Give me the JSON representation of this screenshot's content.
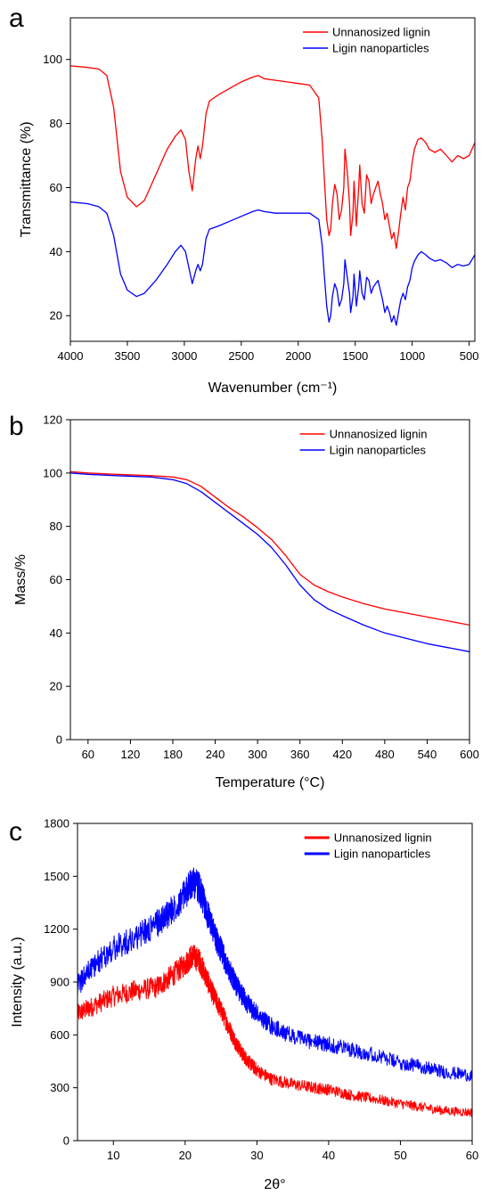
{
  "chart_data": [
    {
      "panel": "a",
      "type": "line",
      "xlabel": "Wavenumber (cm⁻¹)",
      "ylabel": "Transmittance (%)",
      "xlim": [
        4000,
        450
      ],
      "ylim": [
        12,
        113
      ],
      "x_reversed": true,
      "xticks": [
        4000,
        3500,
        3000,
        2500,
        2000,
        1500,
        1000,
        500
      ],
      "yticks": [
        20,
        40,
        60,
        80,
        100
      ],
      "legend_position": "top-right",
      "grid": false,
      "series": [
        {
          "name": "Unnanosized lignin",
          "color": "#ff0000",
          "x": [
            4000,
            3850,
            3750,
            3680,
            3620,
            3560,
            3500,
            3420,
            3350,
            3250,
            3150,
            3080,
            3030,
            2990,
            2960,
            2930,
            2900,
            2880,
            2860,
            2840,
            2810,
            2780,
            2700,
            2600,
            2500,
            2400,
            2350,
            2300,
            2200,
            2100,
            2000,
            1900,
            1820,
            1790,
            1770,
            1750,
            1730,
            1715,
            1700,
            1680,
            1660,
            1640,
            1620,
            1600,
            1590,
            1570,
            1550,
            1540,
            1520,
            1510,
            1490,
            1470,
            1460,
            1440,
            1420,
            1400,
            1380,
            1360,
            1340,
            1320,
            1300,
            1280,
            1260,
            1240,
            1220,
            1200,
            1180,
            1160,
            1140,
            1120,
            1100,
            1080,
            1060,
            1040,
            1020,
            1000,
            980,
            950,
            920,
            880,
            850,
            800,
            750,
            700,
            650,
            600,
            550,
            500,
            450
          ],
          "y": [
            98,
            97.5,
            97,
            95,
            85,
            65,
            57,
            54,
            56,
            64,
            72,
            76,
            78,
            75,
            65,
            59,
            69,
            73,
            69,
            73,
            83,
            87,
            89,
            91,
            93,
            94.5,
            95,
            94,
            93.5,
            93,
            92.5,
            92,
            88,
            75,
            62,
            50,
            45,
            47,
            55,
            61,
            58,
            50,
            53,
            60,
            72,
            65,
            55,
            45,
            52,
            62,
            48,
            60,
            67,
            55,
            52,
            64,
            62,
            55,
            58,
            60,
            62,
            58,
            55,
            50,
            52,
            48,
            44,
            46,
            41,
            46,
            52,
            57,
            53,
            60,
            62,
            68,
            72,
            75,
            75.5,
            74,
            72,
            71,
            72,
            70,
            68,
            70,
            69,
            70,
            74
          ]
        },
        {
          "name": "Ligin nanoparticles",
          "color": "#0000ff",
          "x": [
            4000,
            3850,
            3750,
            3680,
            3620,
            3560,
            3500,
            3420,
            3350,
            3250,
            3150,
            3080,
            3030,
            2990,
            2960,
            2930,
            2900,
            2880,
            2860,
            2840,
            2810,
            2780,
            2700,
            2600,
            2500,
            2400,
            2350,
            2300,
            2200,
            2100,
            2000,
            1900,
            1820,
            1790,
            1770,
            1750,
            1730,
            1715,
            1700,
            1680,
            1660,
            1640,
            1620,
            1600,
            1590,
            1570,
            1550,
            1540,
            1520,
            1510,
            1490,
            1470,
            1460,
            1440,
            1420,
            1400,
            1380,
            1360,
            1340,
            1320,
            1300,
            1280,
            1260,
            1240,
            1220,
            1200,
            1180,
            1160,
            1140,
            1120,
            1100,
            1080,
            1060,
            1040,
            1020,
            1000,
            980,
            950,
            920,
            880,
            850,
            800,
            750,
            700,
            650,
            600,
            550,
            500,
            450
          ],
          "y": [
            55.5,
            55,
            54,
            52,
            45,
            33,
            28,
            26,
            27,
            31,
            36,
            40,
            42,
            40,
            35,
            30,
            34,
            36,
            34,
            36,
            44,
            47,
            48,
            49.5,
            51,
            52.5,
            53,
            52.5,
            52,
            52,
            52,
            52,
            50,
            42,
            32,
            23,
            18,
            20,
            26,
            30,
            28,
            23,
            25,
            30,
            37.5,
            32,
            27,
            21,
            26,
            33,
            23,
            29,
            34,
            27,
            25,
            32,
            31,
            27,
            29,
            30,
            31,
            28,
            25,
            21,
            23,
            21,
            18,
            20,
            17,
            21,
            25,
            27,
            25,
            29,
            31,
            35,
            37,
            39,
            40,
            39,
            38,
            37,
            37.5,
            36.5,
            35,
            36,
            35.5,
            36,
            39
          ]
        }
      ]
    },
    {
      "panel": "b",
      "type": "line",
      "xlabel": "Temperature (°C)",
      "ylabel": "Mass/%",
      "xlim": [
        35,
        600
      ],
      "ylim": [
        0,
        120
      ],
      "xticks": [
        60,
        120,
        180,
        240,
        300,
        360,
        420,
        480,
        540,
        600
      ],
      "yticks": [
        0,
        20,
        40,
        60,
        80,
        100,
        120
      ],
      "legend_position": "top-right",
      "grid": false,
      "series": [
        {
          "name": "Unnanosized lignin",
          "color": "#ff0000",
          "x": [
            35,
            60,
            100,
            150,
            180,
            200,
            220,
            240,
            260,
            280,
            300,
            320,
            340,
            360,
            380,
            400,
            420,
            450,
            480,
            510,
            540,
            570,
            600
          ],
          "y": [
            100.5,
            100,
            99.5,
            99,
            98.5,
            97.5,
            95,
            91,
            87,
            83.5,
            79.5,
            75,
            69,
            62,
            58,
            55.5,
            53.5,
            51,
            49,
            47.5,
            46,
            44.5,
            43
          ]
        },
        {
          "name": "Ligin nanoparticles",
          "color": "#0000ff",
          "x": [
            35,
            60,
            100,
            150,
            180,
            200,
            220,
            240,
            260,
            280,
            300,
            320,
            340,
            360,
            380,
            400,
            420,
            450,
            480,
            510,
            540,
            570,
            600
          ],
          "y": [
            100,
            99.5,
            99,
            98.5,
            97.5,
            96,
            93,
            89,
            85,
            81,
            77,
            72,
            65.5,
            58,
            52.5,
            49,
            46.5,
            43,
            40,
            38,
            36,
            34.5,
            33
          ]
        }
      ]
    },
    {
      "panel": "c",
      "type": "line",
      "xlabel": "2θ°",
      "ylabel": "Intensity (a.u.)",
      "xlim": [
        5,
        60
      ],
      "ylim": [
        0,
        1800
      ],
      "xticks": [
        10,
        20,
        30,
        40,
        50,
        60
      ],
      "yticks": [
        0,
        300,
        600,
        900,
        1200,
        1500,
        1800
      ],
      "legend_position": "top-right",
      "grid": false,
      "series": [
        {
          "name": "Unnanosized lignin",
          "color": "#ff0000",
          "x": [
            5,
            7,
            10,
            13,
            16,
            18,
            20,
            21,
            22,
            23,
            24,
            25,
            26,
            27,
            28,
            29,
            30,
            32,
            35,
            38,
            40,
            43,
            46,
            50,
            53,
            56,
            60
          ],
          "y": [
            720,
            760,
            820,
            850,
            870,
            930,
            1000,
            1050,
            1020,
            920,
            820,
            740,
            650,
            560,
            490,
            440,
            400,
            350,
            320,
            300,
            290,
            260,
            240,
            210,
            190,
            170,
            160
          ]
        },
        {
          "name": "Ligin nanoparticles",
          "color": "#0000ff",
          "x": [
            5,
            7,
            10,
            13,
            16,
            18,
            20,
            21,
            22,
            23,
            24,
            25,
            26,
            27,
            28,
            29,
            30,
            32,
            35,
            38,
            40,
            43,
            46,
            50,
            53,
            56,
            60
          ],
          "y": [
            880,
            980,
            1090,
            1150,
            1230,
            1300,
            1400,
            1470,
            1430,
            1300,
            1180,
            1080,
            980,
            890,
            820,
            760,
            720,
            650,
            590,
            560,
            545,
            520,
            490,
            440,
            420,
            390,
            370
          ]
        }
      ]
    }
  ]
}
